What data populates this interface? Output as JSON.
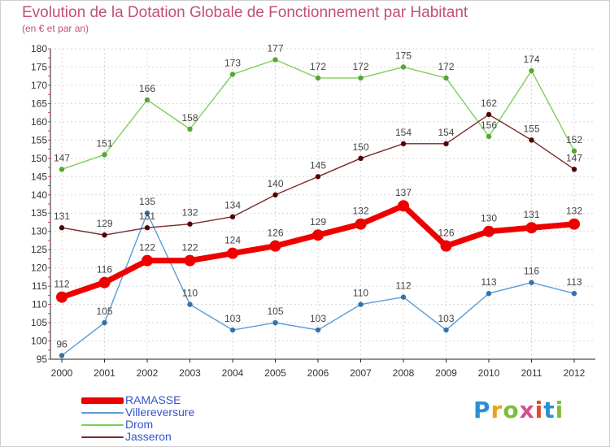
{
  "title": "Evolution de la Dotation Globale de Fonctionnement par Habitant",
  "subtitle": "(en € et par an)",
  "logo": {
    "text": "Proxiti",
    "letters": [
      "P",
      "r",
      "o",
      "x",
      "i",
      "t",
      "i"
    ],
    "colors": [
      "#2b8fd6",
      "#e8a21c",
      "#7bbf3a",
      "#d94d8c",
      "#e24a2a",
      "#2b8fd6",
      "#7bbf3a"
    ]
  },
  "chart_data": {
    "type": "line",
    "categories": [
      "2000",
      "2001",
      "2002",
      "2003",
      "2004",
      "2005",
      "2006",
      "2007",
      "2008",
      "2009",
      "2010",
      "2011",
      "2012"
    ],
    "ylim": [
      95,
      180
    ],
    "yticks": [
      95,
      100,
      105,
      110,
      115,
      120,
      125,
      130,
      135,
      140,
      145,
      150,
      155,
      160,
      165,
      170,
      175,
      180
    ],
    "grid": true,
    "legend_position": "bottom-left",
    "series": [
      {
        "name": "Villereversure",
        "color": "#5b9bd5",
        "emphasis": false,
        "values": [
          96,
          105,
          135,
          110,
          103,
          105,
          103,
          110,
          112,
          103,
          113,
          116,
          113
        ]
      },
      {
        "name": "Drom",
        "color": "#7cd05a",
        "emphasis": false,
        "values": [
          147,
          151,
          166,
          158,
          173,
          177,
          172,
          172,
          175,
          172,
          156,
          174,
          152
        ]
      },
      {
        "name": "Jasseron",
        "color": "#7a2a2a",
        "emphasis": false,
        "values": [
          131,
          129,
          131,
          132,
          134,
          140,
          145,
          150,
          154,
          154,
          162,
          155,
          147
        ]
      },
      {
        "name": "RAMASSE",
        "color": "#ee0000",
        "emphasis": true,
        "values": [
          112,
          116,
          122,
          122,
          124,
          126,
          129,
          132,
          137,
          126,
          130,
          131,
          132
        ]
      }
    ],
    "legend": [
      "RAMASSE",
      "Villereversure",
      "Drom",
      "Jasseron"
    ]
  }
}
